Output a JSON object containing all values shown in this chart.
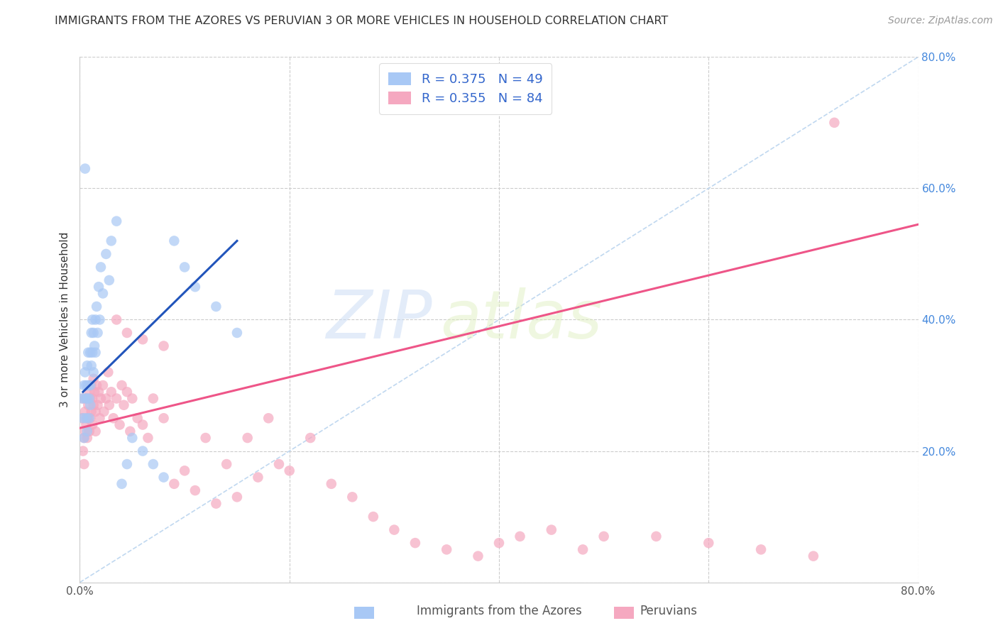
{
  "title": "IMMIGRANTS FROM THE AZORES VS PERUVIAN 3 OR MORE VEHICLES IN HOUSEHOLD CORRELATION CHART",
  "source": "Source: ZipAtlas.com",
  "ylabel": "3 or more Vehicles in Household",
  "legend_label1": "Immigrants from the Azores",
  "legend_label2": "Peruvians",
  "blue_color": "#a8c8f5",
  "pink_color": "#f5a8c0",
  "blue_line_color": "#2255bb",
  "pink_line_color": "#ee5588",
  "diagonal_color": "#c0d8f0",
  "xlim": [
    0.0,
    0.8
  ],
  "ylim": [
    0.0,
    0.8
  ],
  "blue_scatter_x": [
    0.002,
    0.003,
    0.004,
    0.004,
    0.005,
    0.005,
    0.005,
    0.006,
    0.006,
    0.007,
    0.007,
    0.007,
    0.008,
    0.008,
    0.009,
    0.009,
    0.01,
    0.01,
    0.01,
    0.011,
    0.011,
    0.012,
    0.012,
    0.013,
    0.013,
    0.014,
    0.015,
    0.015,
    0.016,
    0.017,
    0.018,
    0.019,
    0.02,
    0.022,
    0.025,
    0.028,
    0.03,
    0.035,
    0.04,
    0.045,
    0.05,
    0.06,
    0.07,
    0.08,
    0.09,
    0.1,
    0.11,
    0.13,
    0.15
  ],
  "blue_scatter_y": [
    0.28,
    0.25,
    0.3,
    0.22,
    0.63,
    0.32,
    0.28,
    0.3,
    0.25,
    0.33,
    0.28,
    0.23,
    0.35,
    0.3,
    0.28,
    0.25,
    0.35,
    0.3,
    0.27,
    0.38,
    0.33,
    0.4,
    0.35,
    0.38,
    0.32,
    0.36,
    0.4,
    0.35,
    0.42,
    0.38,
    0.45,
    0.4,
    0.48,
    0.44,
    0.5,
    0.46,
    0.52,
    0.55,
    0.15,
    0.18,
    0.22,
    0.2,
    0.18,
    0.16,
    0.52,
    0.48,
    0.45,
    0.42,
    0.38
  ],
  "pink_scatter_x": [
    0.002,
    0.003,
    0.003,
    0.004,
    0.004,
    0.005,
    0.005,
    0.006,
    0.006,
    0.007,
    0.007,
    0.008,
    0.008,
    0.009,
    0.009,
    0.01,
    0.01,
    0.011,
    0.011,
    0.012,
    0.012,
    0.013,
    0.013,
    0.014,
    0.015,
    0.015,
    0.016,
    0.017,
    0.018,
    0.019,
    0.02,
    0.022,
    0.023,
    0.025,
    0.027,
    0.028,
    0.03,
    0.032,
    0.035,
    0.038,
    0.04,
    0.042,
    0.045,
    0.048,
    0.05,
    0.055,
    0.06,
    0.065,
    0.07,
    0.08,
    0.09,
    0.1,
    0.11,
    0.12,
    0.13,
    0.14,
    0.15,
    0.16,
    0.17,
    0.18,
    0.19,
    0.2,
    0.22,
    0.24,
    0.26,
    0.28,
    0.3,
    0.32,
    0.35,
    0.38,
    0.4,
    0.42,
    0.45,
    0.48,
    0.5,
    0.55,
    0.6,
    0.65,
    0.7,
    0.72,
    0.035,
    0.045,
    0.06,
    0.08
  ],
  "pink_scatter_y": [
    0.25,
    0.2,
    0.28,
    0.22,
    0.18,
    0.26,
    0.23,
    0.28,
    0.24,
    0.25,
    0.22,
    0.27,
    0.25,
    0.29,
    0.23,
    0.28,
    0.25,
    0.3,
    0.26,
    0.28,
    0.24,
    0.31,
    0.27,
    0.29,
    0.26,
    0.23,
    0.3,
    0.27,
    0.29,
    0.25,
    0.28,
    0.3,
    0.26,
    0.28,
    0.32,
    0.27,
    0.29,
    0.25,
    0.28,
    0.24,
    0.3,
    0.27,
    0.29,
    0.23,
    0.28,
    0.25,
    0.24,
    0.22,
    0.28,
    0.25,
    0.15,
    0.17,
    0.14,
    0.22,
    0.12,
    0.18,
    0.13,
    0.22,
    0.16,
    0.25,
    0.18,
    0.17,
    0.22,
    0.15,
    0.13,
    0.1,
    0.08,
    0.06,
    0.05,
    0.04,
    0.06,
    0.07,
    0.08,
    0.05,
    0.07,
    0.07,
    0.06,
    0.05,
    0.04,
    0.7,
    0.4,
    0.38,
    0.37,
    0.36
  ],
  "blue_line_x": [
    0.003,
    0.15
  ],
  "blue_line_y": [
    0.29,
    0.52
  ],
  "pink_line_x": [
    0.0,
    0.8
  ],
  "pink_line_y": [
    0.235,
    0.545
  ]
}
